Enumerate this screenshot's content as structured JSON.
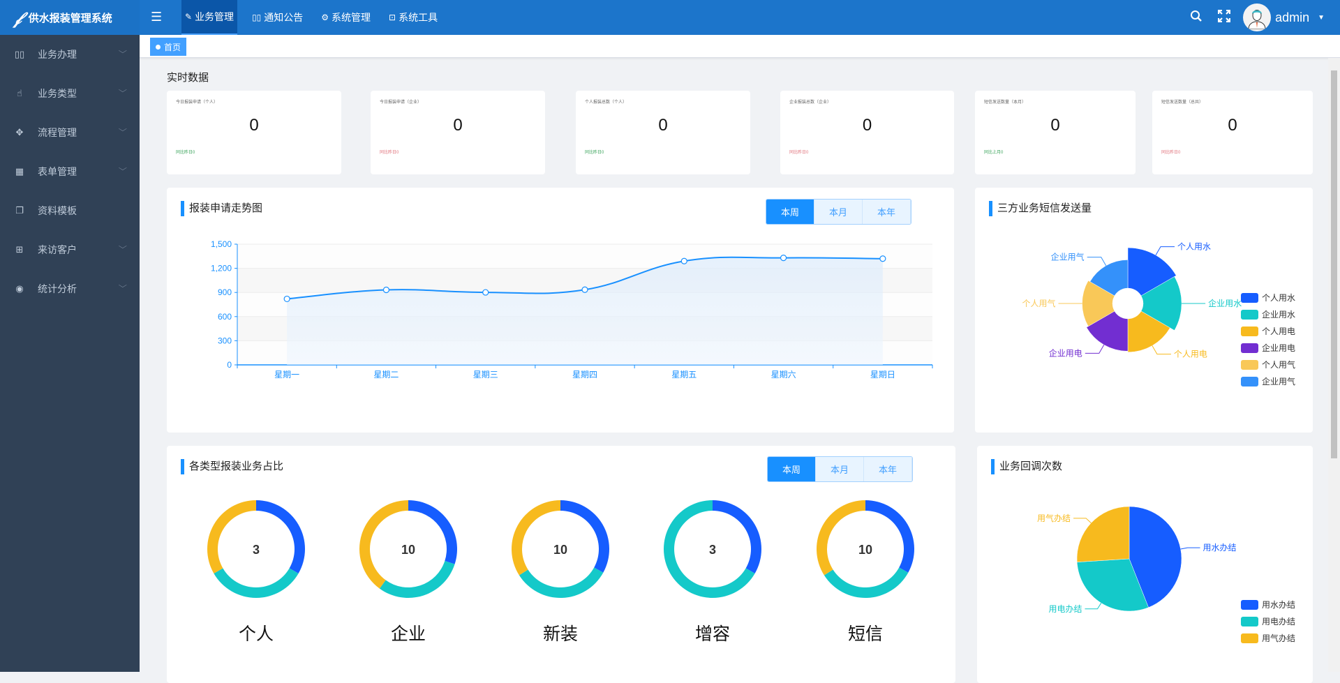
{
  "app": {
    "title": "供水报装管理系统",
    "logo_icon": "script-logo-icon"
  },
  "topnav": [
    {
      "label": "业务管理",
      "icon": "edit-icon",
      "active": true
    },
    {
      "label": "通知公告",
      "icon": "book-icon"
    },
    {
      "label": "系统管理",
      "icon": "gear-icon"
    },
    {
      "label": "系统工具",
      "icon": "toolbox-icon"
    }
  ],
  "header": {
    "user": "admin"
  },
  "sidebar": [
    {
      "label": "业务办理",
      "icon": "book-icon",
      "arrow": true
    },
    {
      "label": "业务类型",
      "icon": "hand-icon",
      "arrow": true
    },
    {
      "label": "流程管理",
      "icon": "move-icon",
      "arrow": true
    },
    {
      "label": "表单管理",
      "icon": "calendar-icon",
      "arrow": true
    },
    {
      "label": "资料模板",
      "icon": "documents-icon",
      "arrow": false
    },
    {
      "label": "来访客户",
      "icon": "table-icon",
      "arrow": true
    },
    {
      "label": "统计分析",
      "icon": "eye-icon",
      "arrow": true
    }
  ],
  "tags": [
    {
      "label": "首页"
    }
  ],
  "realtime": {
    "title": "实时数据",
    "cards": [
      {
        "label": "今日报装申请（个人）",
        "value": "0",
        "compare": "同比昨日0",
        "color": "#3aa35a"
      },
      {
        "label": "今日报装申请（企业）",
        "value": "0",
        "compare": "同比昨日0",
        "color": "#e0707a"
      },
      {
        "label": "个人报装总数（个人）",
        "value": "0",
        "compare": "同比昨日0",
        "color": "#3aa35a"
      },
      {
        "label": "企业报装总数（企业）",
        "value": "0",
        "compare": "同比昨日0",
        "color": "#e0707a"
      },
      {
        "label": "短信发送数量（本月）",
        "value": "0",
        "compare": "同比上月0",
        "color": "#3aa35a"
      },
      {
        "label": "短信发送数量（总共）",
        "value": "0",
        "compare": "同比昨日0",
        "color": "#e0707a"
      }
    ]
  },
  "periods": [
    "本周",
    "本月",
    "本年"
  ],
  "chart_data": [
    {
      "type": "line",
      "title": "报装申请走势图",
      "categories": [
        "星期一",
        "星期二",
        "星期三",
        "星期四",
        "星期五",
        "星期六",
        "星期日"
      ],
      "values": [
        820,
        932,
        901,
        934,
        1290,
        1330,
        1320
      ],
      "ylim": [
        0,
        1500
      ],
      "yticks": [
        "0",
        "300",
        "600",
        "900",
        "1,200",
        "1,500"
      ],
      "smooth": true,
      "area": true,
      "grid": true,
      "color": "#1890ff",
      "selected_period": "本周"
    },
    {
      "type": "pie",
      "rose": true,
      "title": "三方业务短信发送量",
      "labels": [
        "个人用水",
        "企业用水",
        "个人用电",
        "企业用电",
        "个人用气",
        "企业用气"
      ],
      "values": [
        40,
        38,
        33,
        32,
        30,
        28
      ],
      "colors": [
        "#165dff",
        "#14c9c9",
        "#f7ba1e",
        "#722ed1",
        "#f9c858",
        "#3491fa"
      ],
      "legend": "right"
    },
    {
      "type": "donut",
      "title": "各类型报装业务占比",
      "selected_period": "本周",
      "items": [
        {
          "label": "个人",
          "total": "3",
          "values": [
            1,
            1,
            1
          ]
        },
        {
          "label": "企业",
          "total": "10",
          "values": [
            3,
            3,
            4
          ]
        },
        {
          "label": "新装",
          "total": "10",
          "values": [
            3.3,
            3.3,
            3.4
          ]
        },
        {
          "label": "增容",
          "total": "3",
          "values": [
            1,
            2,
            0
          ]
        },
        {
          "label": "短信",
          "total": "10",
          "values": [
            3.3,
            3.3,
            3.4
          ]
        }
      ],
      "colors": [
        "#165dff",
        "#14c9c9",
        "#f7ba1e"
      ]
    },
    {
      "type": "pie",
      "title": "业务回调次数",
      "labels": [
        "用水办结",
        "用电办结",
        "用气办结"
      ],
      "values": [
        44,
        30,
        26
      ],
      "colors": [
        "#165dff",
        "#14c9c9",
        "#f7ba1e"
      ],
      "legend": "bottom-right"
    }
  ]
}
